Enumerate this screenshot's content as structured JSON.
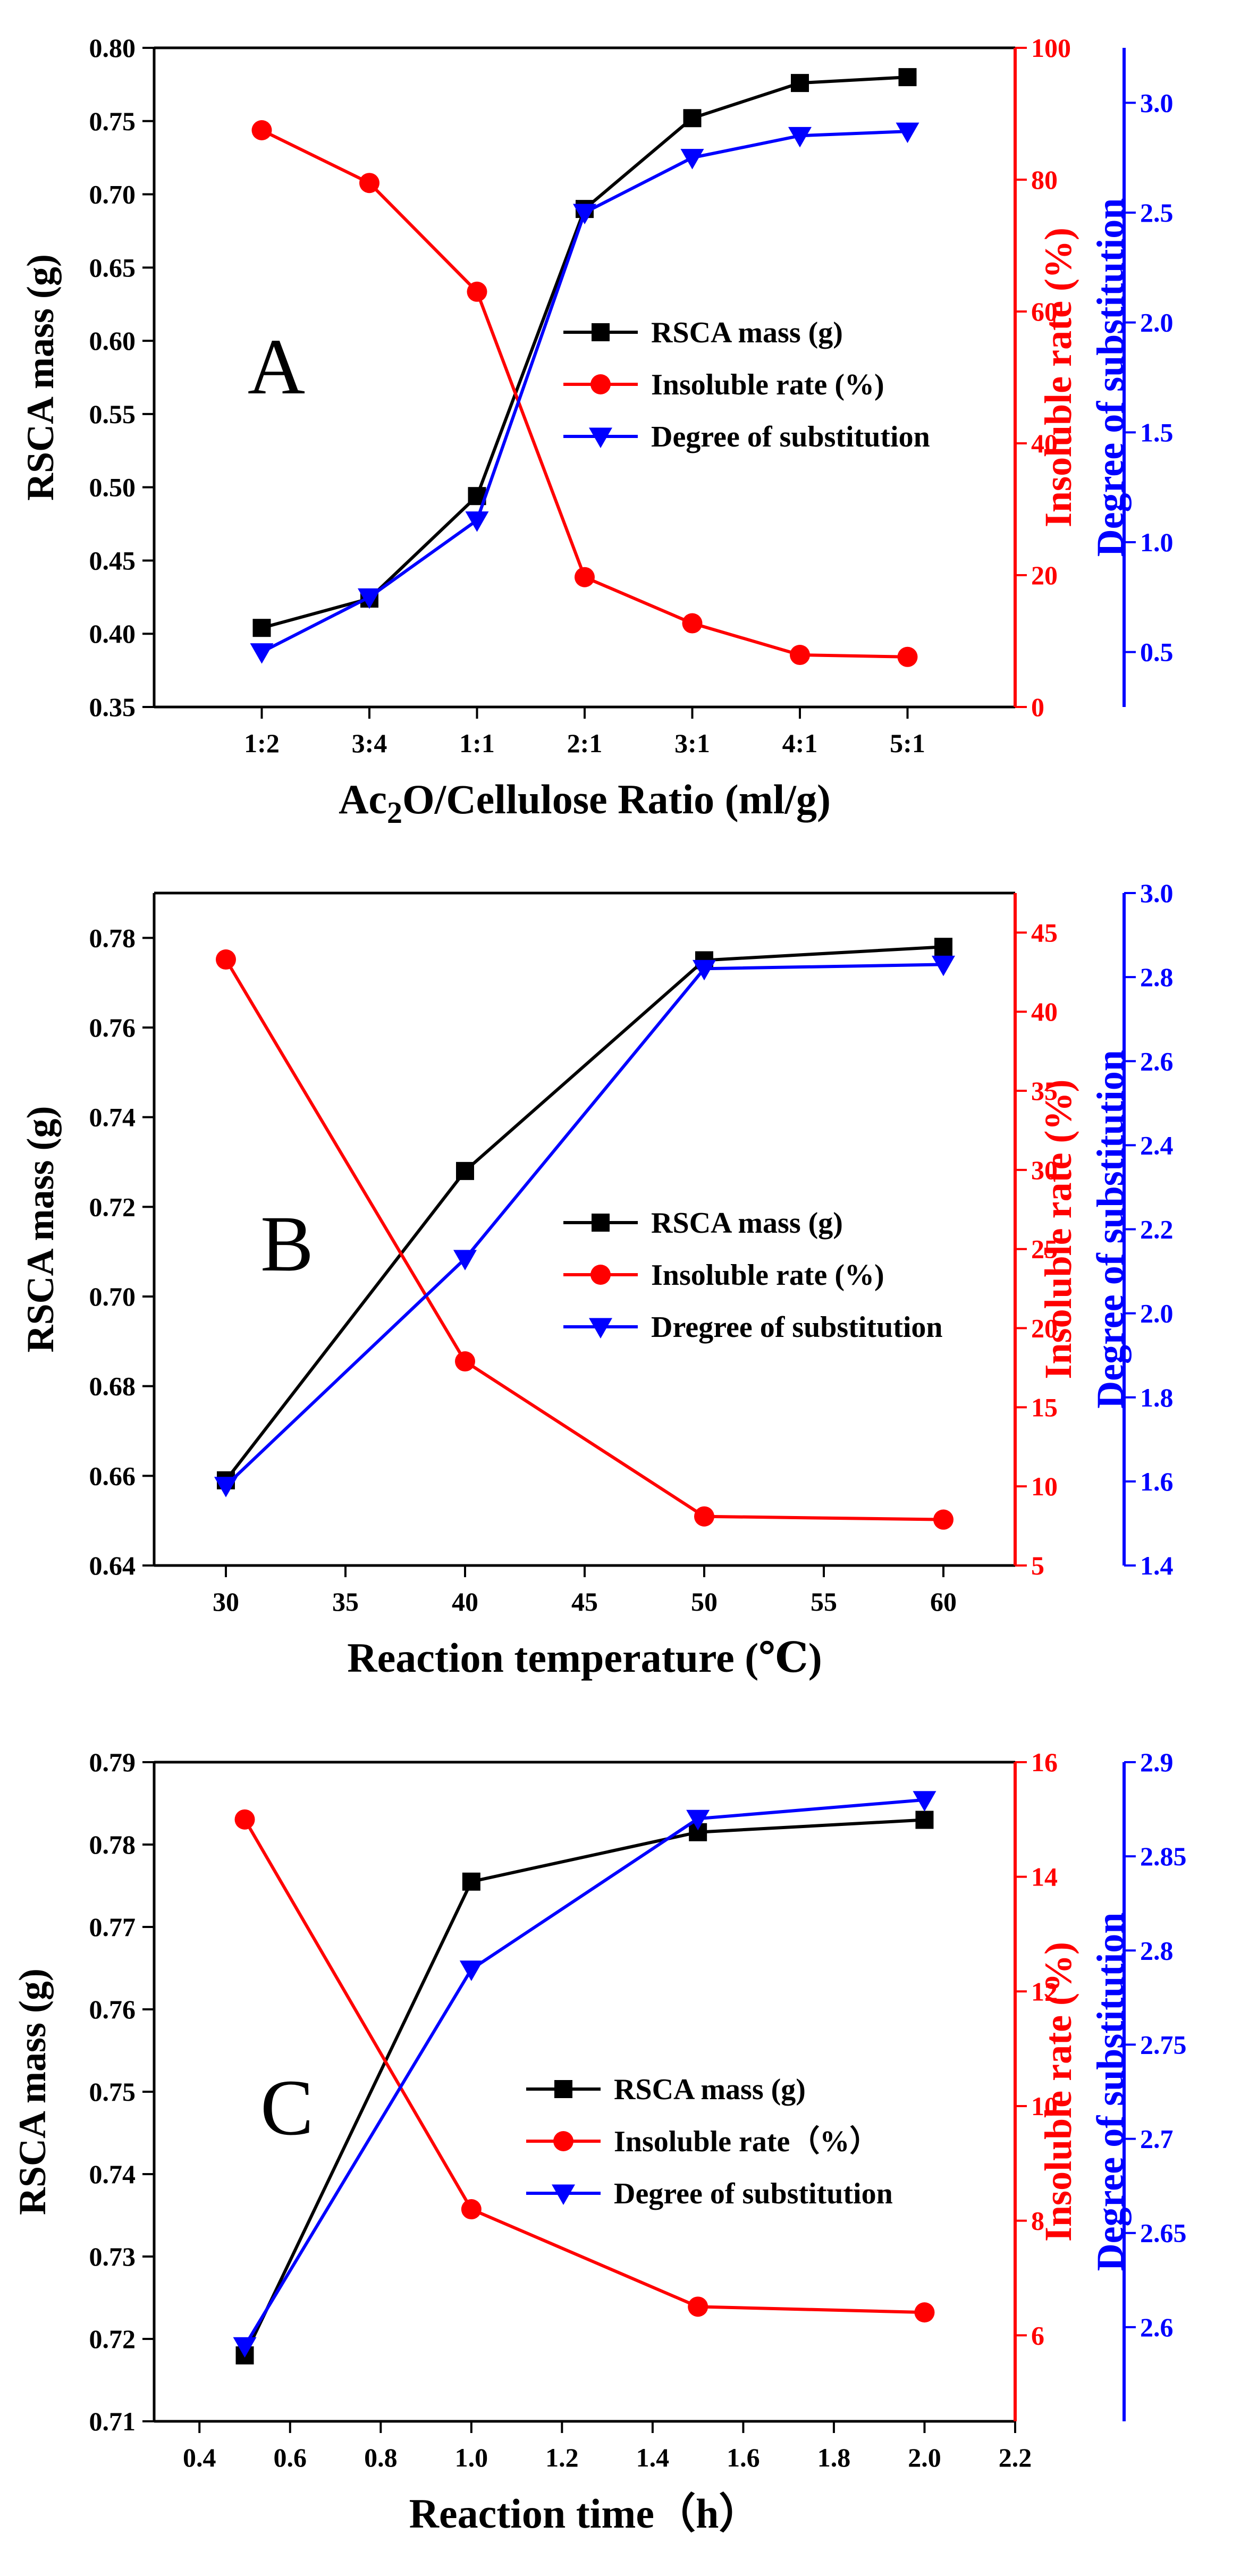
{
  "colors": {
    "axis": "#000000",
    "red": "#ff0000",
    "blue": "#0000ff",
    "black": "#000000"
  },
  "chart_data": [
    {
      "type": "line",
      "panel_label": "A",
      "xlabel": "Ac2O/Cellulose Ratio (ml/g)",
      "x_categories": [
        "1:2",
        "3:4",
        "1:1",
        "2:1",
        "3:1",
        "4:1",
        "5:1"
      ],
      "y_left": {
        "label": "RSCA mass (g)",
        "range": [
          0.35,
          0.8
        ],
        "ticks": [
          "0.35",
          "0.40",
          "0.45",
          "0.50",
          "0.55",
          "0.60",
          "0.65",
          "0.70",
          "0.75",
          "0.80"
        ]
      },
      "y_right1": {
        "label": "Insoluble rate (%)",
        "range": [
          0,
          100
        ],
        "ticks": [
          "0",
          "20",
          "40",
          "60",
          "80",
          "100"
        ]
      },
      "y_right2": {
        "label": "Degree of substitution",
        "range": [
          0.25,
          3.25
        ],
        "ticks": [
          "0.5",
          "1.0",
          "1.5",
          "2.0",
          "2.5",
          "3.0"
        ]
      },
      "series": [
        {
          "name": "RSCA mass (g)",
          "axis": "left",
          "color": "#000000",
          "marker": "square",
          "values": [
            0.404,
            0.424,
            0.494,
            0.69,
            0.752,
            0.776,
            0.78
          ]
        },
        {
          "name": "Insoluble rate (%)",
          "axis": "right1",
          "color": "#ff0000",
          "marker": "circle",
          "values": [
            87.5,
            79.5,
            63,
            19.7,
            12.7,
            7.9,
            7.6
          ]
        },
        {
          "name": "Degree of substitution",
          "axis": "right2",
          "color": "#0000ff",
          "marker": "triangle-down",
          "values": [
            0.5,
            0.75,
            1.1,
            2.5,
            2.75,
            2.85,
            2.87
          ]
        }
      ]
    },
    {
      "type": "line",
      "panel_label": "B",
      "xlabel": "Reaction temperature (℃)",
      "x": [
        30,
        40,
        50,
        60
      ],
      "x_range": [
        27,
        63
      ],
      "x_ticks": [
        "30",
        "35",
        "40",
        "45",
        "50",
        "55",
        "60"
      ],
      "y_left": {
        "label": "RSCA mass (g)",
        "range": [
          0.64,
          0.79
        ],
        "ticks": [
          "0.64",
          "0.66",
          "0.68",
          "0.70",
          "0.72",
          "0.74",
          "0.76",
          "0.78"
        ]
      },
      "y_right1": {
        "label": "Insoluble rate (%)",
        "range": [
          5,
          47.5
        ],
        "ticks": [
          "5",
          "10",
          "15",
          "20",
          "25",
          "30",
          "35",
          "40",
          "45"
        ]
      },
      "y_right2": {
        "label": "Degree of substitution",
        "range": [
          1.4,
          3.0
        ],
        "ticks": [
          "1.4",
          "1.6",
          "1.8",
          "2.0",
          "2.2",
          "2.4",
          "2.6",
          "2.8",
          "3.0"
        ]
      },
      "series": [
        {
          "name": "RSCA mass (g)",
          "axis": "left",
          "color": "#000000",
          "marker": "square",
          "values": [
            0.659,
            0.728,
            0.775,
            0.778
          ]
        },
        {
          "name": "Insoluble rate (%)",
          "axis": "right1",
          "color": "#ff0000",
          "marker": "circle",
          "values": [
            43.3,
            17.9,
            8.1,
            7.9
          ]
        },
        {
          "name": "Dregree of substitution",
          "axis": "right2",
          "color": "#0000ff",
          "marker": "triangle-down",
          "values": [
            1.59,
            2.13,
            2.82,
            2.83
          ]
        }
      ]
    },
    {
      "type": "line",
      "panel_label": "C",
      "xlabel": "Reaction time（h）",
      "x": [
        0.5,
        1.0,
        1.5,
        2.0
      ],
      "x_range": [
        0.3,
        2.2
      ],
      "x_ticks": [
        "0.4",
        "0.6",
        "0.8",
        "1.0",
        "1.2",
        "1.4",
        "1.6",
        "1.8",
        "2.0",
        "2.2"
      ],
      "y_left": {
        "label": "RSCA mass (g)",
        "range": [
          0.71,
          0.79
        ],
        "ticks": [
          "0.71",
          "0.72",
          "0.73",
          "0.74",
          "0.75",
          "0.76",
          "0.77",
          "0.78",
          "0.79"
        ]
      },
      "y_right1": {
        "label": "Insoluble rate (%)",
        "range": [
          4.5,
          16
        ],
        "ticks": [
          "6",
          "8",
          "10",
          "12",
          "14",
          "16"
        ]
      },
      "y_right2": {
        "label": "Degree of substitution",
        "range": [
          2.55,
          2.9
        ],
        "ticks": [
          "2.6",
          "2.65",
          "2.7",
          "2.75",
          "2.8",
          "2.85",
          "2.9"
        ]
      },
      "series": [
        {
          "name": "RSCA mass (g)",
          "axis": "left",
          "color": "#000000",
          "marker": "square",
          "values": [
            0.718,
            0.7755,
            0.7815,
            0.783
          ]
        },
        {
          "name": "Insoluble rate（%）",
          "axis": "right1",
          "color": "#ff0000",
          "marker": "circle",
          "values": [
            15.0,
            8.2,
            6.5,
            6.4
          ]
        },
        {
          "name": "Degree of substitution",
          "axis": "right2",
          "color": "#0000ff",
          "marker": "triangle-down",
          "values": [
            2.59,
            2.79,
            2.87,
            2.88
          ]
        }
      ]
    }
  ]
}
